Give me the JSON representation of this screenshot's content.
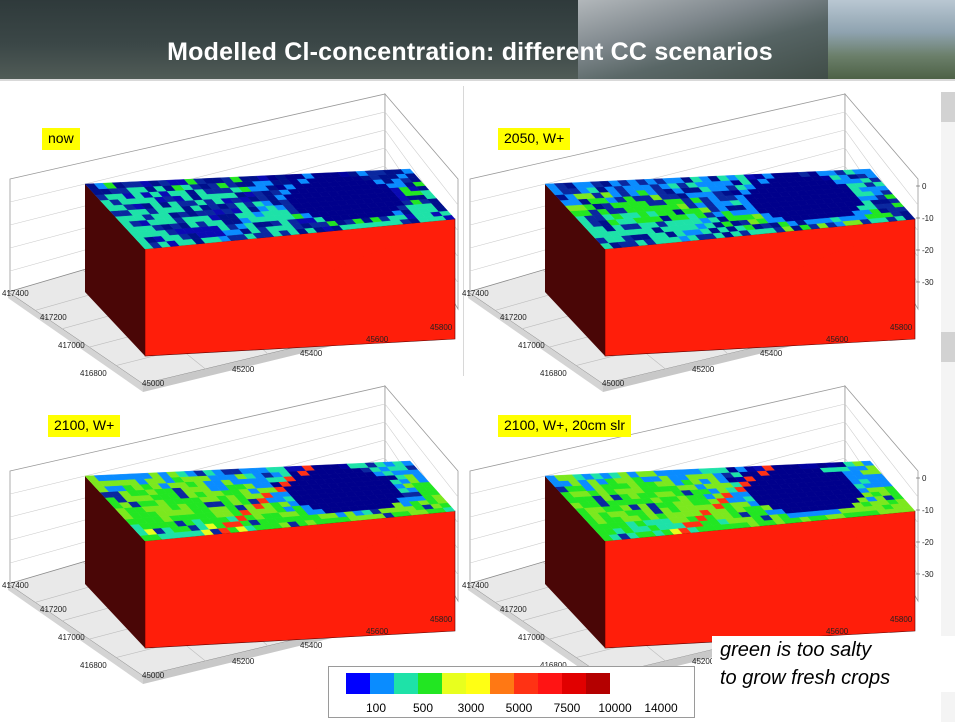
{
  "title": "Modelled Cl-concentration: different CC scenarios",
  "panels": [
    {
      "label": "now"
    },
    {
      "label": "2050, W+"
    },
    {
      "label": "2100, W+"
    },
    {
      "label": "2100, W+, 20cm slr"
    }
  ],
  "axes": {
    "y_ticks": [
      "417400",
      "417200",
      "417000",
      "416800"
    ],
    "x_ticks": [
      "45000",
      "45200",
      "45400",
      "45600",
      "45800"
    ],
    "z_ticks": [
      "0",
      "-10",
      "-20",
      "-30"
    ]
  },
  "legend": {
    "colors": [
      "#0000ff",
      "#0a8cff",
      "#1ee2a8",
      "#22e622",
      "#e8ff1e",
      "#ffff14",
      "#ff7814",
      "#ff3214",
      "#ff1414",
      "#e10000",
      "#b40000"
    ],
    "labels": [
      "100",
      "500",
      "3000",
      "5000",
      "7500",
      "10000",
      "14000"
    ]
  },
  "note": {
    "line1": "green is too salty",
    "line2": "to grow fresh crops"
  }
}
